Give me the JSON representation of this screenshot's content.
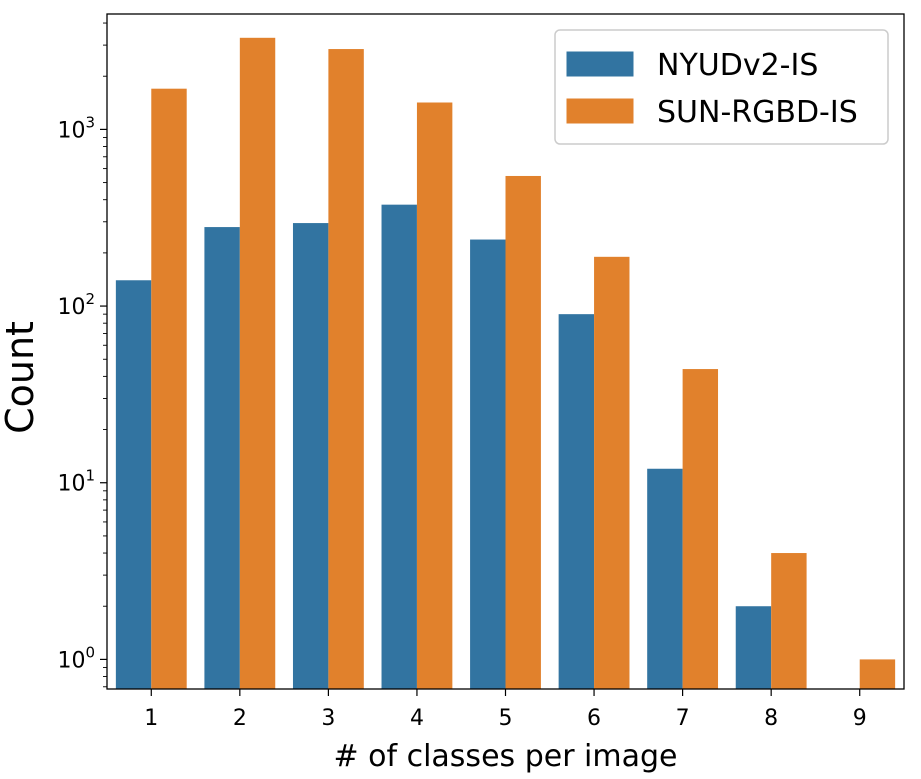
{
  "chart_data": {
    "type": "bar",
    "title": "",
    "xlabel": "# of classes per image",
    "ylabel": "Count",
    "yscale": "log",
    "ylim": [
      0.68,
      4500
    ],
    "grid": false,
    "legend_position": "top-right",
    "categories": [
      "1",
      "2",
      "3",
      "4",
      "5",
      "6",
      "7",
      "8",
      "9"
    ],
    "y_ticks": [
      {
        "value": 1,
        "base": "10",
        "exp": "0"
      },
      {
        "value": 10,
        "base": "10",
        "exp": "1"
      },
      {
        "value": 100,
        "base": "10",
        "exp": "2"
      },
      {
        "value": 1000,
        "base": "10",
        "exp": "3"
      }
    ],
    "series": [
      {
        "name": "NYUDv2-IS",
        "color": "#3274a1",
        "values": [
          140,
          280,
          295,
          375,
          238,
          90,
          12,
          2,
          null
        ]
      },
      {
        "name": "SUN-RGBD-IS",
        "color": "#e1812c",
        "values": [
          1700,
          3300,
          2850,
          1420,
          545,
          190,
          44,
          4,
          1
        ]
      }
    ]
  }
}
